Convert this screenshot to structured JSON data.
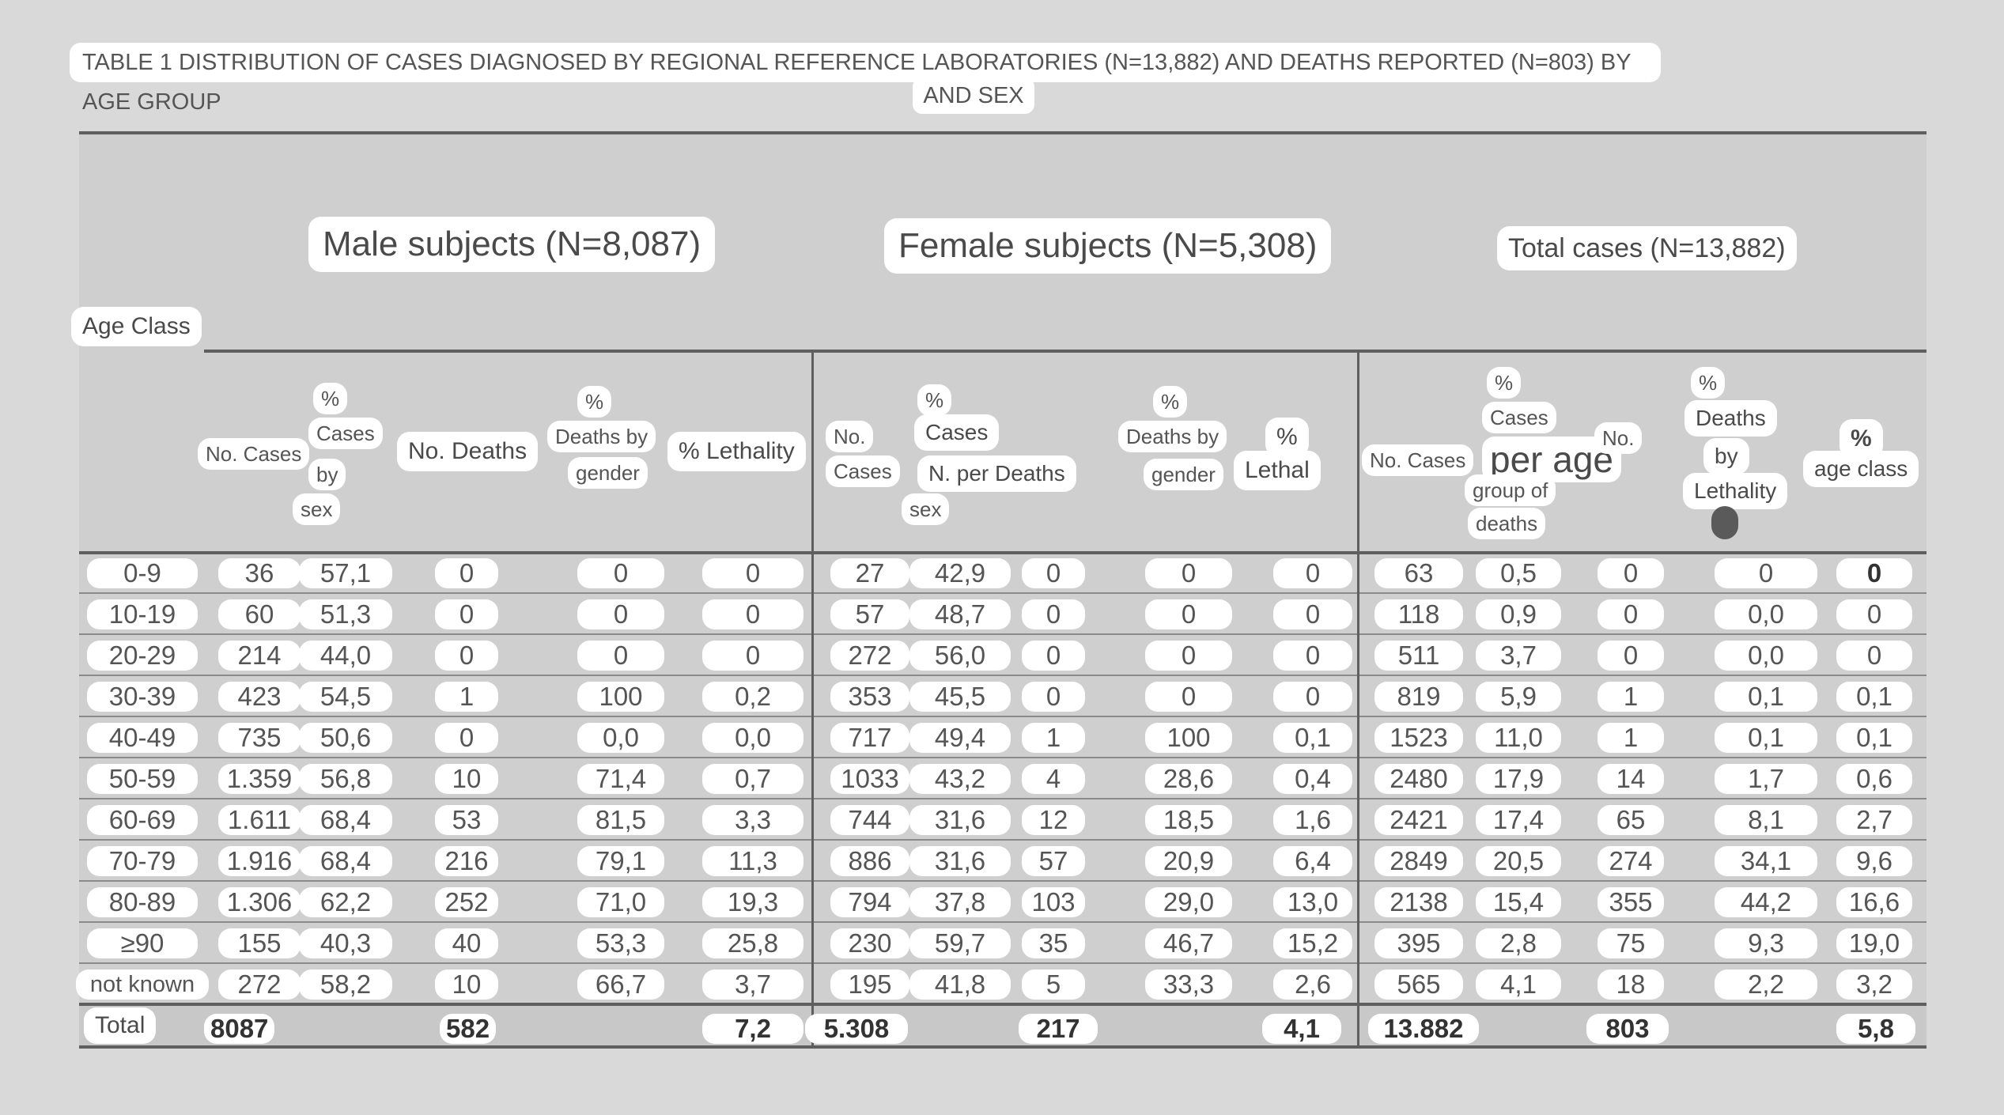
{
  "caption": {
    "line1": "TABLE 1 DISTRIBUTION OF CASES DIAGNOSED BY REGIONAL REFERENCE LABORATORIES (N=13,882) AND DEATHS REPORTED (N=803) BY AGE GROUP",
    "line2": "AND SEX"
  },
  "groups": {
    "male": "Male subjects (N=8,087)",
    "female": "Female subjects (N=5,308)",
    "total": "Total cases (N=13,882)"
  },
  "headers": {
    "age_class": "Age Class",
    "m_no_cases": "No. Cases",
    "m_pct_cases_1": "%",
    "m_pct_cases_2": "Cases",
    "m_pct_cases_3": "by",
    "m_pct_cases_4": "sex",
    "m_no_deaths": "No. Deaths",
    "m_pct_deaths_1": "%",
    "m_pct_deaths_2": "Deaths by",
    "m_pct_deaths_3": "gender",
    "m_lethality": "% Lethality",
    "f_no_1": "No.",
    "f_cases": "Cases",
    "f_pct": "%",
    "f_cases2": "Cases",
    "f_n_per_deaths": "N. per Deaths",
    "f_sex": "sex",
    "f_pct_deaths_1": "%",
    "f_pct_deaths_2": "Deaths by",
    "f_pct_deaths_3": "gender",
    "f_lethal_1": "%",
    "f_lethal_2": "Lethal",
    "t_no_cases": "No. Cases",
    "t_pct": "%",
    "t_cases": "Cases",
    "t_per_age": "per age",
    "t_group_of": "group of",
    "t_deaths": "deaths",
    "t_no": "No.",
    "t_pct2": "%",
    "t_deaths2": "Deaths",
    "t_by": "by",
    "t_lethality": "Lethality",
    "t_pct3": "%",
    "t_age_class": "age class"
  },
  "rows": [
    {
      "age": "0-9",
      "c": [
        "36",
        "57,1",
        "0",
        "0",
        "0",
        "27",
        "42,9",
        "0",
        "0",
        "0",
        "63",
        "0,5",
        "0",
        "0",
        "0"
      ]
    },
    {
      "age": "10-19",
      "c": [
        "60",
        "51,3",
        "0",
        "0",
        "0",
        "57",
        "48,7",
        "0",
        "0",
        "0",
        "118",
        "0,9",
        "0",
        "0,0",
        "0"
      ]
    },
    {
      "age": "20-29",
      "c": [
        "214",
        "44,0",
        "0",
        "0",
        "0",
        "272",
        "56,0",
        "0",
        "0",
        "0",
        "511",
        "3,7",
        "0",
        "0,0",
        "0"
      ]
    },
    {
      "age": "30-39",
      "c": [
        "423",
        "54,5",
        "1",
        "100",
        "0,2",
        "353",
        "45,5",
        "0",
        "0",
        "0",
        "819",
        "5,9",
        "1",
        "0,1",
        "0,1"
      ]
    },
    {
      "age": "40-49",
      "c": [
        "735",
        "50,6",
        "0",
        "0,0",
        "0,0",
        "717",
        "49,4",
        "1",
        "100",
        "0,1",
        "1523",
        "11,0",
        "1",
        "0,1",
        "0,1"
      ]
    },
    {
      "age": "50-59",
      "c": [
        "1.359",
        "56,8",
        "10",
        "71,4",
        "0,7",
        "1033",
        "43,2",
        "4",
        "28,6",
        "0,4",
        "2480",
        "17,9",
        "14",
        "1,7",
        "0,6"
      ]
    },
    {
      "age": "60-69",
      "c": [
        "1.611",
        "68,4",
        "53",
        "81,5",
        "3,3",
        "744",
        "31,6",
        "12",
        "18,5",
        "1,6",
        "2421",
        "17,4",
        "65",
        "8,1",
        "2,7"
      ]
    },
    {
      "age": "70-79",
      "c": [
        "1.916",
        "68,4",
        "216",
        "79,1",
        "11,3",
        "886",
        "31,6",
        "57",
        "20,9",
        "6,4",
        "2849",
        "20,5",
        "274",
        "34,1",
        "9,6"
      ]
    },
    {
      "age": "80-89",
      "c": [
        "1.306",
        "62,2",
        "252",
        "71,0",
        "19,3",
        "794",
        "37,8",
        "103",
        "29,0",
        "13,0",
        "2138",
        "15,4",
        "355",
        "44,2",
        "16,6"
      ]
    },
    {
      "age": "≥90",
      "c": [
        "155",
        "40,3",
        "40",
        "53,3",
        "25,8",
        "230",
        "59,7",
        "35",
        "46,7",
        "15,2",
        "395",
        "2,8",
        "75",
        "9,3",
        "19,0"
      ]
    },
    {
      "age": "not known",
      "c": [
        "272",
        "58,2",
        "10",
        "66,7",
        "3,7",
        "195",
        "41,8",
        "5",
        "33,3",
        "2,6",
        "565",
        "4,1",
        "18",
        "2,2",
        "3,2"
      ]
    }
  ],
  "total": {
    "label": "Total",
    "m_cases": "8087",
    "m_deaths": "582",
    "m_lethality": "7,2",
    "f_cases": "5.308",
    "f_deaths": "217",
    "f_lethality": "4,1",
    "t_cases": "13.882",
    "t_deaths": "803",
    "t_lethality": "5,8"
  }
}
